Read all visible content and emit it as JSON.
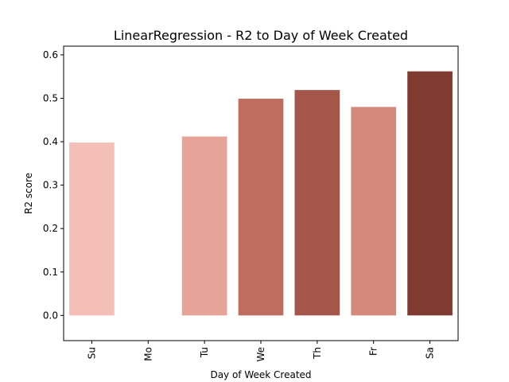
{
  "chart_data": {
    "type": "bar",
    "title": "LinearRegression - R2 to Day of Week Created",
    "xlabel": "Day of Week Created",
    "ylabel": "R2 score",
    "categories": [
      "Su",
      "Mo",
      "Tu",
      "We",
      "Th",
      "Fr",
      "Sa"
    ],
    "values": [
      0.398,
      0.0,
      0.412,
      0.499,
      0.519,
      0.48,
      0.562
    ],
    "colors": [
      "#f4bfb6",
      "#ffffff",
      "#e6a397",
      "#bf6d5f",
      "#a35649",
      "#d5897b",
      "#803b31"
    ],
    "ylim": [
      -0.058,
      0.62
    ],
    "yticks": [
      0.0,
      0.1,
      0.2,
      0.3,
      0.4,
      0.5,
      0.6
    ],
    "ytick_labels": [
      "0.0",
      "0.1",
      "0.2",
      "0.3",
      "0.4",
      "0.5",
      "0.6"
    ],
    "grid": false,
    "legend": "none"
  }
}
